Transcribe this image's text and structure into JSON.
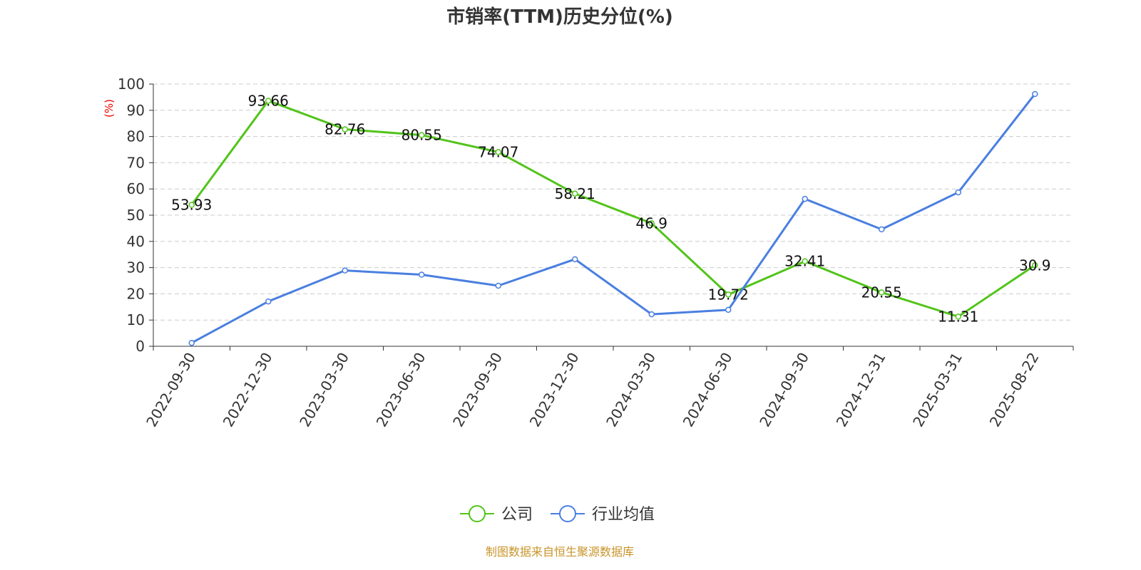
{
  "chart_data": {
    "type": "line",
    "title": "市销率(TTM)历史分位(%)",
    "ylabel": "(%)",
    "ylim": [
      0,
      100
    ],
    "yticks": [
      0,
      10,
      20,
      30,
      40,
      50,
      60,
      70,
      80,
      90,
      100
    ],
    "grid": true,
    "legend_position": "bottom",
    "categories": [
      "2022-09-30",
      "2022-12-30",
      "2023-03-30",
      "2023-06-30",
      "2023-09-30",
      "2023-12-30",
      "2024-03-30",
      "2024-06-30",
      "2024-09-30",
      "2024-12-31",
      "2025-03-31",
      "2025-08-22"
    ],
    "series": [
      {
        "name": "公司",
        "color": "#52c41a",
        "values": [
          53.93,
          93.66,
          82.76,
          80.55,
          74.07,
          58.21,
          46.9,
          19.72,
          32.41,
          20.55,
          11.31,
          30.9
        ],
        "labels": [
          "53.93",
          "93.66",
          "82.76",
          "80.55",
          "74.07",
          "58.21",
          "46.9",
          "19.72",
          "32.41",
          "20.55",
          "11.31",
          "30.9"
        ]
      },
      {
        "name": "行业均值",
        "color": "#4a7fe0",
        "values": [
          1.3,
          17.1,
          28.9,
          27.3,
          23.1,
          33.2,
          12.2,
          13.9,
          56.2,
          44.6,
          58.7,
          96.2
        ]
      }
    ]
  },
  "source": "制图数据来自恒生聚源数据库"
}
